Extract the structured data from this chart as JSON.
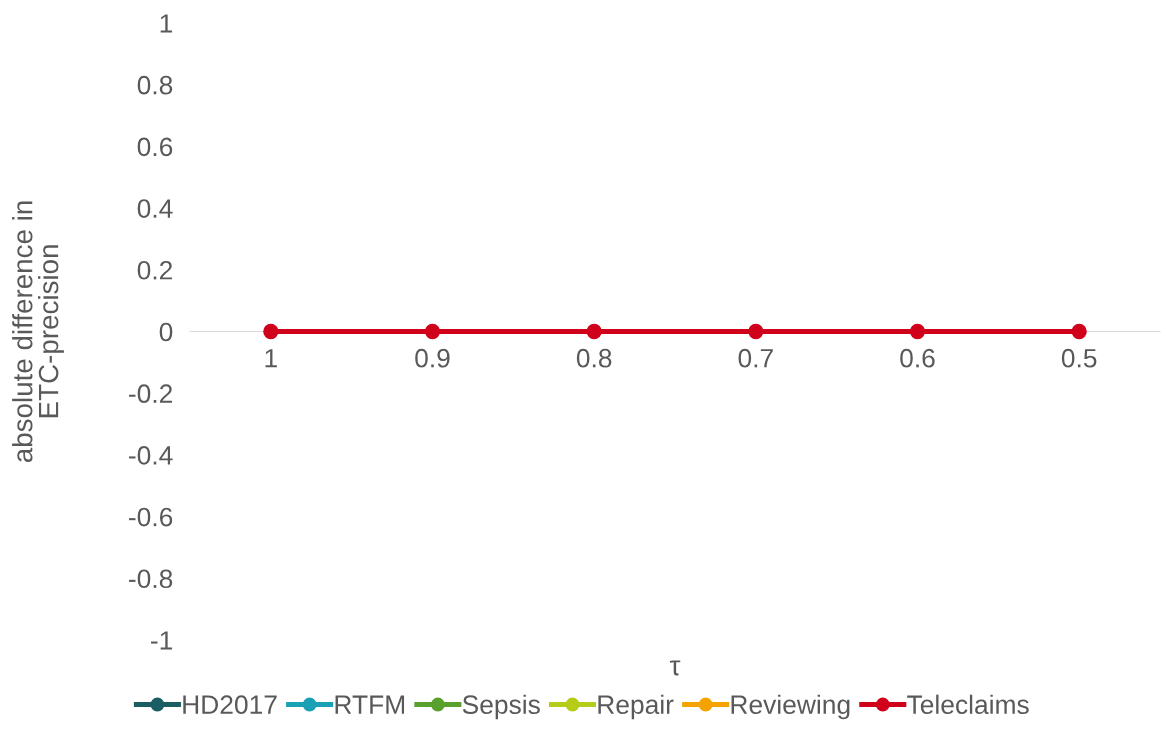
{
  "chart_data": {
    "type": "line",
    "xlabel": "τ",
    "ylabel": "absolute difference in ETC-precision",
    "categories": [
      "1",
      "0.9",
      "0.8",
      "0.7",
      "0.6",
      "0.5"
    ],
    "series": [
      {
        "name": "HD2017",
        "color": "#1a5e63",
        "values": [
          null,
          null,
          null,
          null,
          null,
          null
        ]
      },
      {
        "name": "RTFM",
        "color": "#1ba1b5",
        "values": [
          null,
          null,
          null,
          null,
          null,
          null
        ]
      },
      {
        "name": "Sepsis",
        "color": "#5aa02c",
        "values": [
          null,
          null,
          null,
          null,
          null,
          null
        ]
      },
      {
        "name": "Repair",
        "color": "#b5cc18",
        "values": [
          null,
          null,
          null,
          null,
          null,
          null
        ]
      },
      {
        "name": "Reviewing",
        "color": "#f5a300",
        "values": [
          null,
          null,
          null,
          null,
          null,
          null
        ]
      },
      {
        "name": "Teleclaims",
        "color": "#d0021b",
        "values": [
          0,
          0,
          0,
          0,
          0,
          0
        ]
      }
    ],
    "ylim": [
      -1,
      1
    ],
    "yticks": [
      -1,
      -0.8,
      -0.6,
      -0.4,
      -0.2,
      0,
      0.2,
      0.4,
      0.6,
      0.8,
      1
    ],
    "grid": false,
    "legend": "bottom",
    "marker": "circle",
    "line_style": "solid"
  }
}
